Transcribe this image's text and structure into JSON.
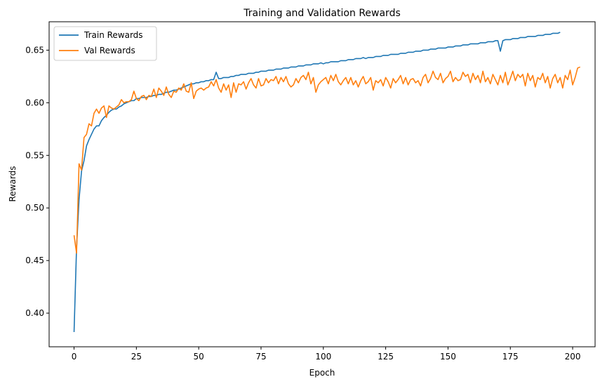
{
  "chart_data": {
    "type": "line",
    "title": "Training and Validation Rewards",
    "xlabel": "Epoch",
    "ylabel": "Rewards",
    "xlim": [
      -10,
      209
    ],
    "ylim": [
      0.368,
      0.677
    ],
    "xticks": [
      0,
      25,
      50,
      75,
      100,
      125,
      150,
      175,
      200
    ],
    "yticks": [
      0.4,
      0.45,
      0.5,
      0.55,
      0.6,
      0.65
    ],
    "ytick_labels": [
      "0.40",
      "0.45",
      "0.50",
      "0.55",
      "0.60",
      "0.65"
    ],
    "grid": false,
    "legend_position": "top-left",
    "series": [
      {
        "name": "Train Rewards",
        "color": "#1f77b4",
        "values": [
          0.382,
          0.462,
          0.508,
          0.535,
          0.545,
          0.559,
          0.565,
          0.57,
          0.575,
          0.578,
          0.578,
          0.583,
          0.586,
          0.588,
          0.591,
          0.593,
          0.594,
          0.594,
          0.596,
          0.597,
          0.599,
          0.6,
          0.601,
          0.602,
          0.602,
          0.604,
          0.604,
          0.605,
          0.605,
          0.605,
          0.606,
          0.606,
          0.607,
          0.607,
          0.608,
          0.608,
          0.609,
          0.61,
          0.61,
          0.611,
          0.612,
          0.612,
          0.613,
          0.614,
          0.615,
          0.616,
          0.617,
          0.618,
          0.618,
          0.619,
          0.619,
          0.62,
          0.62,
          0.621,
          0.621,
          0.622,
          0.622,
          0.629,
          0.623,
          0.623,
          0.624,
          0.624,
          0.624,
          0.625,
          0.625,
          0.626,
          0.626,
          0.627,
          0.627,
          0.627,
          0.628,
          0.628,
          0.628,
          0.629,
          0.629,
          0.63,
          0.63,
          0.63,
          0.631,
          0.631,
          0.631,
          0.632,
          0.632,
          0.632,
          0.633,
          0.633,
          0.633,
          0.634,
          0.634,
          0.634,
          0.635,
          0.635,
          0.635,
          0.636,
          0.636,
          0.636,
          0.637,
          0.637,
          0.637,
          0.638,
          0.637,
          0.638,
          0.638,
          0.639,
          0.639,
          0.639,
          0.639,
          0.64,
          0.64,
          0.64,
          0.641,
          0.641,
          0.641,
          0.642,
          0.642,
          0.642,
          0.643,
          0.642,
          0.643,
          0.643,
          0.643,
          0.644,
          0.644,
          0.644,
          0.645,
          0.645,
          0.645,
          0.646,
          0.646,
          0.646,
          0.646,
          0.647,
          0.647,
          0.647,
          0.648,
          0.648,
          0.648,
          0.649,
          0.649,
          0.649,
          0.65,
          0.65,
          0.65,
          0.651,
          0.651,
          0.651,
          0.652,
          0.652,
          0.652,
          0.652,
          0.653,
          0.653,
          0.653,
          0.654,
          0.654,
          0.654,
          0.655,
          0.655,
          0.655,
          0.656,
          0.656,
          0.656,
          0.656,
          0.657,
          0.657,
          0.657,
          0.658,
          0.658,
          0.658,
          0.659,
          0.659,
          0.649,
          0.659,
          0.66,
          0.66,
          0.66,
          0.661,
          0.661,
          0.661,
          0.662,
          0.662,
          0.662,
          0.663,
          0.663,
          0.663,
          0.663,
          0.664,
          0.664,
          0.664,
          0.665,
          0.665,
          0.665,
          0.666,
          0.666,
          0.666,
          0.667
        ]
      },
      {
        "name": "Val Rewards",
        "color": "#ff7f0e",
        "values": [
          0.474,
          0.457,
          0.542,
          0.536,
          0.567,
          0.57,
          0.58,
          0.578,
          0.59,
          0.594,
          0.59,
          0.595,
          0.597,
          0.586,
          0.597,
          0.595,
          0.594,
          0.596,
          0.598,
          0.603,
          0.6,
          0.601,
          0.601,
          0.603,
          0.611,
          0.604,
          0.602,
          0.606,
          0.607,
          0.603,
          0.607,
          0.606,
          0.613,
          0.605,
          0.614,
          0.611,
          0.607,
          0.615,
          0.608,
          0.605,
          0.611,
          0.61,
          0.614,
          0.612,
          0.618,
          0.611,
          0.61,
          0.619,
          0.604,
          0.611,
          0.613,
          0.614,
          0.612,
          0.614,
          0.615,
          0.62,
          0.616,
          0.622,
          0.614,
          0.61,
          0.618,
          0.612,
          0.617,
          0.605,
          0.619,
          0.61,
          0.618,
          0.617,
          0.62,
          0.613,
          0.619,
          0.623,
          0.617,
          0.614,
          0.623,
          0.616,
          0.617,
          0.623,
          0.619,
          0.622,
          0.621,
          0.625,
          0.618,
          0.624,
          0.62,
          0.625,
          0.618,
          0.615,
          0.617,
          0.623,
          0.619,
          0.624,
          0.626,
          0.622,
          0.629,
          0.618,
          0.624,
          0.61,
          0.617,
          0.62,
          0.622,
          0.624,
          0.618,
          0.626,
          0.621,
          0.627,
          0.62,
          0.617,
          0.621,
          0.624,
          0.618,
          0.624,
          0.617,
          0.621,
          0.615,
          0.621,
          0.625,
          0.618,
          0.62,
          0.624,
          0.612,
          0.621,
          0.619,
          0.622,
          0.616,
          0.624,
          0.62,
          0.614,
          0.623,
          0.619,
          0.622,
          0.626,
          0.618,
          0.624,
          0.617,
          0.622,
          0.623,
          0.619,
          0.621,
          0.616,
          0.624,
          0.627,
          0.619,
          0.623,
          0.63,
          0.624,
          0.622,
          0.628,
          0.619,
          0.623,
          0.625,
          0.63,
          0.62,
          0.624,
          0.621,
          0.622,
          0.629,
          0.625,
          0.627,
          0.619,
          0.628,
          0.622,
          0.626,
          0.619,
          0.63,
          0.62,
          0.624,
          0.618,
          0.627,
          0.622,
          0.617,
          0.626,
          0.619,
          0.629,
          0.617,
          0.623,
          0.63,
          0.621,
          0.627,
          0.624,
          0.627,
          0.616,
          0.628,
          0.621,
          0.626,
          0.615,
          0.624,
          0.622,
          0.628,
          0.619,
          0.625,
          0.614,
          0.623,
          0.627,
          0.619,
          0.624,
          0.614,
          0.626,
          0.622,
          0.631,
          0.617,
          0.624,
          0.633,
          0.634
        ]
      }
    ]
  }
}
